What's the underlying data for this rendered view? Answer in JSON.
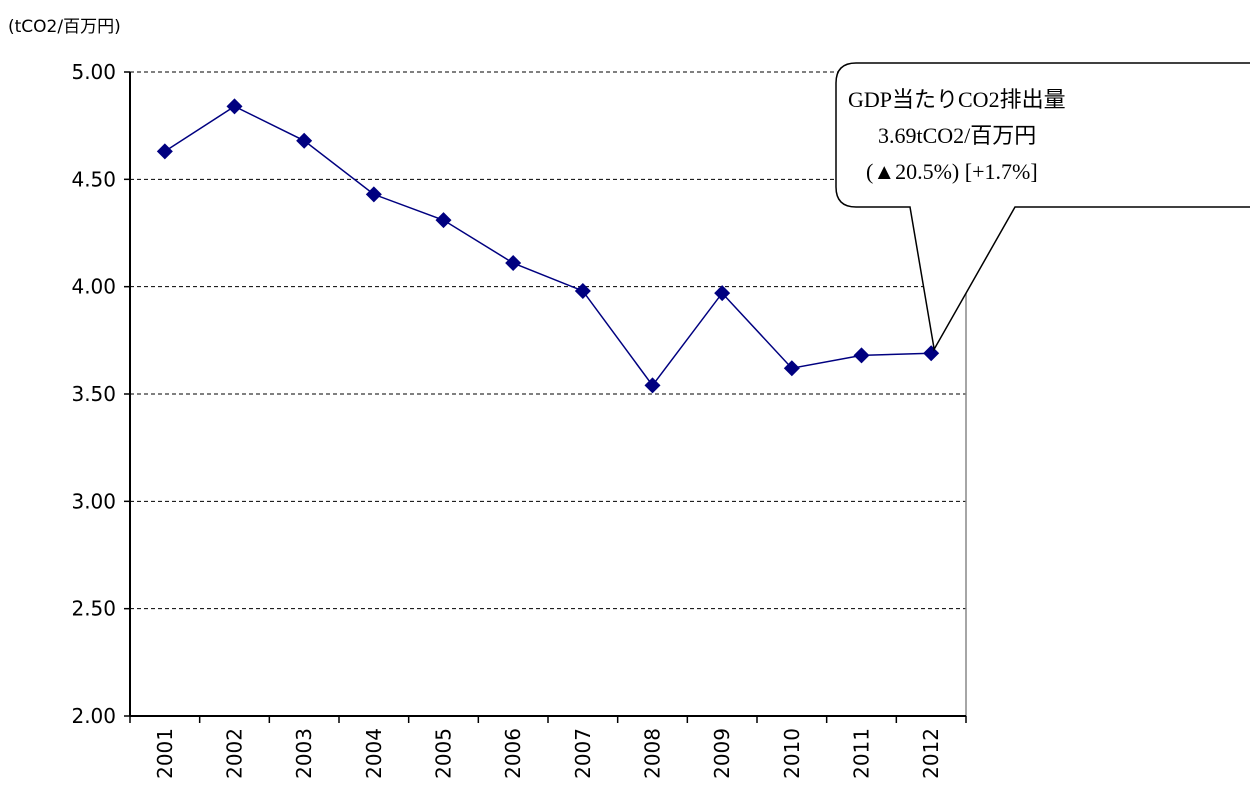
{
  "chart_data": {
    "type": "line",
    "y_axis_label": "(tCO2/百万円)",
    "categories": [
      "2001",
      "2002",
      "2003",
      "2004",
      "2005",
      "2006",
      "2007",
      "2008",
      "2009",
      "2010",
      "2011",
      "2012"
    ],
    "series": [
      {
        "color": "#000080",
        "values": [
          4.63,
          4.84,
          4.68,
          4.43,
          4.31,
          4.11,
          3.98,
          3.54,
          3.97,
          3.62,
          3.68,
          3.69
        ]
      }
    ],
    "ylim": [
      2,
      5
    ],
    "yticks": [
      {
        "value": 2,
        "label": "2.00"
      },
      {
        "value": 2.5,
        "label": "2.50"
      },
      {
        "value": 3,
        "label": "3.00"
      },
      {
        "value": 3.5,
        "label": "3.50"
      },
      {
        "value": 4,
        "label": "4.00"
      },
      {
        "value": 4.5,
        "label": "4.50"
      },
      {
        "value": 5,
        "label": "5.00"
      }
    ],
    "grid": true,
    "annotation": [
      "GDP当たりCO2排出量",
      "3.69tCO2/百万円",
      "(▲20.5%) [+1.7%]"
    ]
  }
}
